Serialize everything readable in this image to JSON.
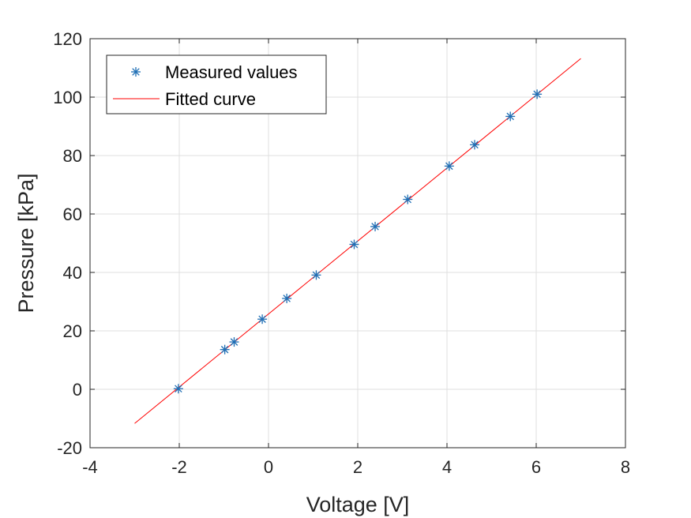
{
  "chart_data": {
    "type": "scatter",
    "xlabel": "Voltage [V]",
    "ylabel": "Pressure [kPa]",
    "xlim": [
      -4,
      8
    ],
    "ylim": [
      -20,
      120
    ],
    "x_ticks": [
      -4,
      -2,
      0,
      2,
      4,
      6,
      8
    ],
    "y_ticks": [
      -20,
      0,
      20,
      40,
      60,
      80,
      100,
      120
    ],
    "x_tick_labels": [
      "-4",
      "-2",
      "0",
      "2",
      "4",
      "6",
      "8"
    ],
    "y_tick_labels": [
      "-20",
      "0",
      "20",
      "40",
      "60",
      "80",
      "100",
      "120"
    ],
    "grid": true,
    "legend_position": "top-left",
    "series": [
      {
        "name": "Measured values",
        "type": "scatter",
        "marker": "asterisk",
        "color": "#1f6fb5",
        "x": [
          -2.02,
          -0.98,
          -0.77,
          -0.14,
          0.41,
          1.07,
          1.92,
          2.39,
          3.12,
          4.05,
          4.62,
          5.42,
          6.02
        ],
        "y": [
          0.2,
          13.6,
          16.2,
          24.0,
          31.1,
          39.1,
          49.6,
          55.7,
          65.0,
          76.4,
          83.7,
          93.4,
          101.0
        ]
      },
      {
        "name": "Fitted curve",
        "type": "line",
        "color": "#ff0000",
        "x": [
          -3,
          7
        ],
        "y": [
          -11.7,
          113.2
        ]
      }
    ]
  }
}
